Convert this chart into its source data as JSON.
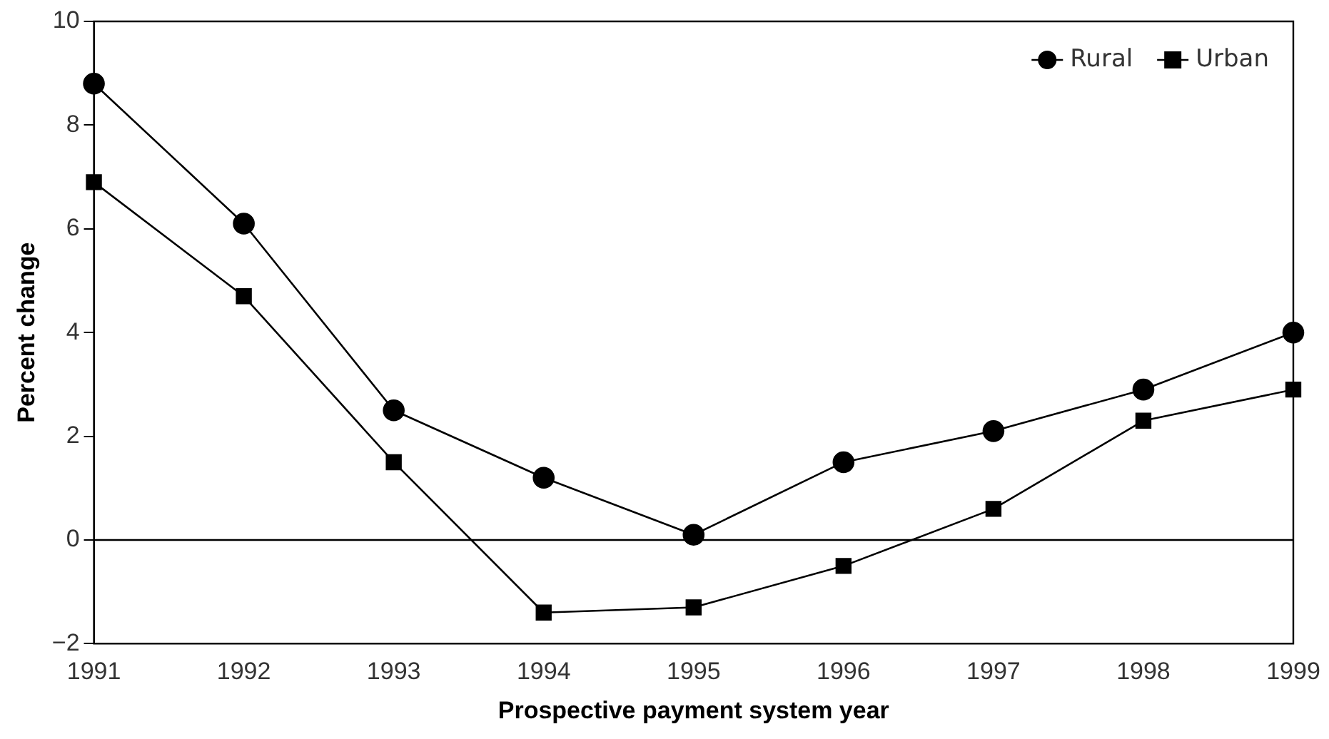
{
  "chart_data": {
    "type": "line",
    "xlabel": "Prospective payment system year",
    "ylabel": "Percent change",
    "categories": [
      "1991",
      "1992",
      "1993",
      "1994",
      "1995",
      "1996",
      "1997",
      "1998",
      "1999"
    ],
    "series": [
      {
        "name": "Rural",
        "color": "#000000",
        "marker": "circle",
        "values": [
          8.8,
          6.1,
          2.5,
          1.2,
          0.1,
          1.5,
          2.1,
          2.9,
          4.0
        ]
      },
      {
        "name": "Urban",
        "color": "#000000",
        "marker": "square",
        "values": [
          6.9,
          4.7,
          1.5,
          -1.4,
          -1.3,
          -0.5,
          0.6,
          2.3,
          2.9
        ]
      }
    ],
    "ylim": [
      -2,
      10
    ],
    "yticks": [
      -2,
      0,
      2,
      4,
      6,
      8,
      10
    ],
    "ref_lines": [
      {
        "axis": "y",
        "value": 0,
        "color": "#000000"
      }
    ],
    "grid": false,
    "legend": "top right",
    "line_style": "solid"
  }
}
